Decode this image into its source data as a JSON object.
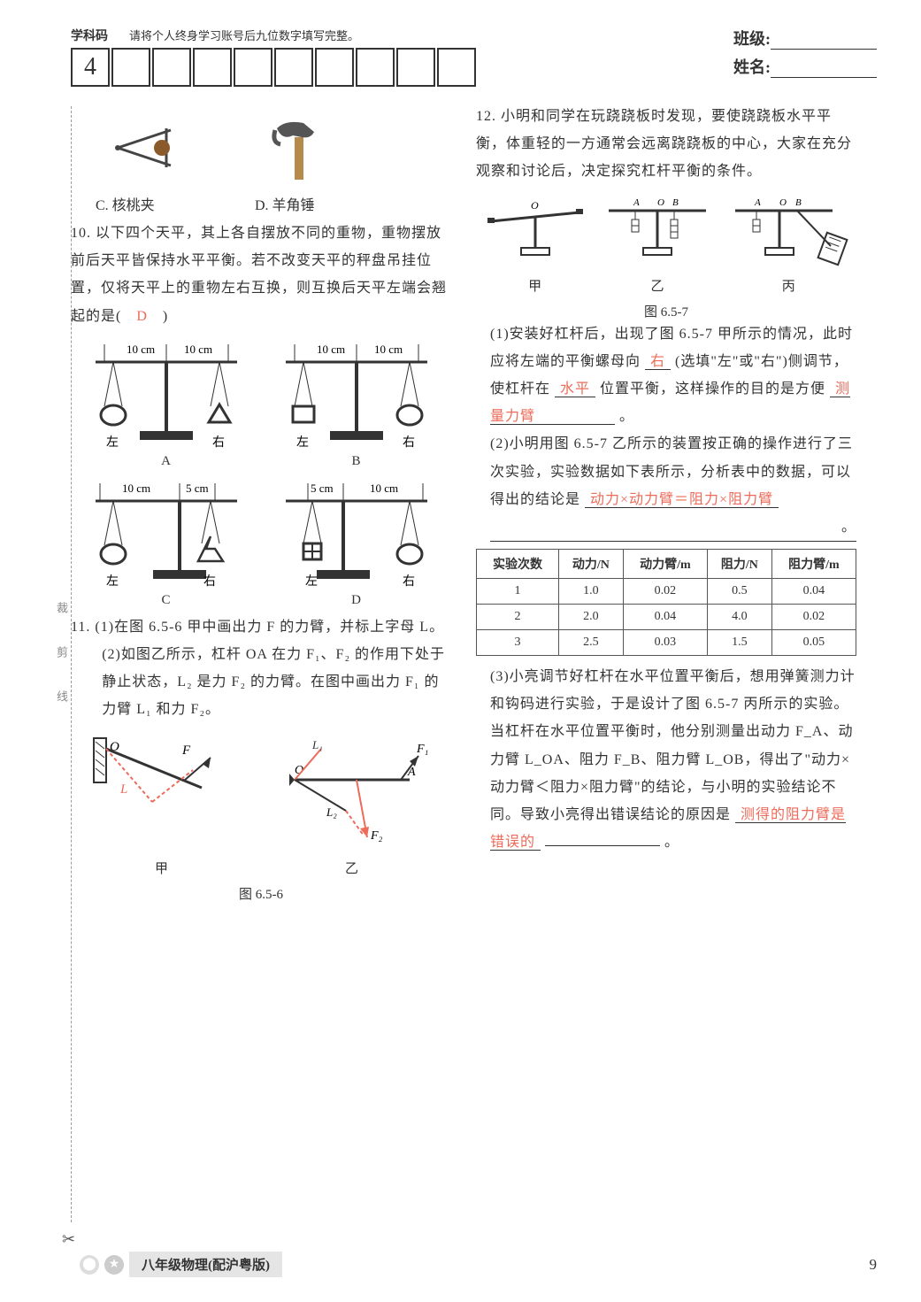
{
  "header": {
    "subject_label": "学科码",
    "subject_note": "请将个人终身学习账号后九位数字填写完整。",
    "first_digit": "4",
    "class_label": "班级:",
    "name_label": "姓名:"
  },
  "left": {
    "opt_c": "C. 核桃夹",
    "opt_d": "D. 羊角锤",
    "q10_stem": "10. 以下四个天平，其上各自摆放不同的重物，重物摆放前后天平皆保持水平平衡。若不改变天平的秤盘吊挂位置，仅将天平上的重物左右互换，则互换后天平左端会翘起的是(　",
    "q10_answer": "D",
    "q10_close": "　)",
    "balance_labels": {
      "A": "A",
      "B": "B",
      "C": "C",
      "D": "D"
    },
    "balance_dims": {
      "ten": "10 cm",
      "five": "5 cm",
      "left": "左",
      "right": "右"
    },
    "q11_1": "11. (1)在图 6.5-6 甲中画出力 F 的力臂，并标上字母 L。",
    "q11_2a": "(2)如图乙所示，杠杆 OA 在力 F₁、F₂ 的作用下处于静止状态，L₂ 是力 F₂ 的力臂。在图中画出力 F₁ 的力臂 L₁ 和力 F₂。",
    "fig_caption_656": "图 6.5-6",
    "fig_labels": {
      "jia": "甲",
      "yi": "乙"
    }
  },
  "right": {
    "q12_stem": "12. 小明和同学在玩跷跷板时发现，要使跷跷板水平平衡，体重轻的一方通常会远离跷跷板的中心，大家在充分观察和讨论后，决定探究杠杆平衡的条件。",
    "fig_caption_657": "图 6.5-7",
    "lever_labels": {
      "jia": "甲",
      "yi": "乙",
      "bing": "丙"
    },
    "q12_1a": "(1)安装好杠杆后，出现了图 6.5-7 甲所示的情况，此时应将左端的平衡螺母向",
    "q12_1_ans1": "右",
    "q12_1b": "(选填\"左\"或\"右\")侧调节，使杠杆在",
    "q12_1_ans2": "水平",
    "q12_1c": "位置平衡，这样操作的目的是方便",
    "q12_1_ans3": "测量力臂",
    "q12_1d": "。",
    "q12_2a": "(2)小明用图 6.5-7 乙所示的装置按正确的操作进行了三次实验，实验数据如下表所示，分析表中的数据，可以得出的结论是",
    "q12_2_ans": "动力×动力臂＝阻力×阻力臂",
    "q12_2b": "。",
    "table": {
      "headers": [
        "实验次数",
        "动力/N",
        "动力臂/m",
        "阻力/N",
        "阻力臂/m"
      ],
      "rows": [
        [
          "1",
          "1.0",
          "0.02",
          "0.5",
          "0.04"
        ],
        [
          "2",
          "2.0",
          "0.04",
          "4.0",
          "0.02"
        ],
        [
          "3",
          "2.5",
          "0.03",
          "1.5",
          "0.05"
        ]
      ]
    },
    "q12_3a": "(3)小亮调节好杠杆在水平位置平衡后，想用弹簧测力计和钩码进行实验，于是设计了图 6.5-7 丙所示的实验。当杠杆在水平位置平衡时，他分别测量出动力 F_A、动力臂 L_OA、阻力 F_B、阻力臂 L_OB，得出了\"动力×动力臂＜阻力×阻力臂\"的结论，与小明的实验结论不同。导致小亮得出错误结论的原因是",
    "q12_3_ans": "测得的阻力臂是错误的",
    "q12_3b": "。"
  },
  "footer": {
    "text": "八年级物理(配沪粤版)",
    "page": "9"
  },
  "colors": {
    "answer": "#ed6b5a",
    "text": "#333333",
    "border": "#333333"
  }
}
